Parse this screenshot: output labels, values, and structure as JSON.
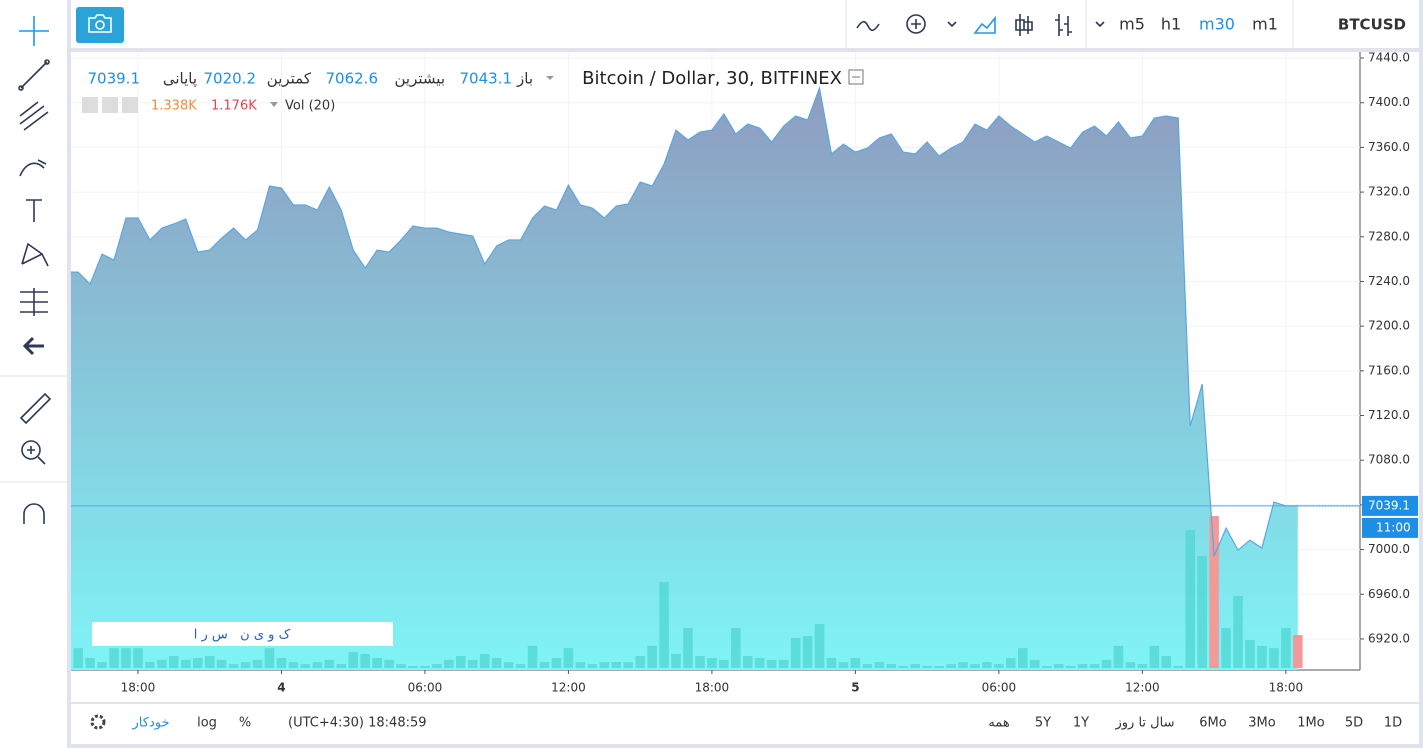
{
  "toolbar": {
    "symbol": "BTCUSD",
    "intervals": [
      "m5",
      "h1",
      "m30",
      "m1"
    ],
    "active_interval": 2
  },
  "legend": {
    "title": "Bitcoin / Dollar, 30, BITFINEX",
    "open_label": "باز",
    "open": 7043.1,
    "high_label": "بیشترین",
    "high": 7062.6,
    "low_label": "کمترین",
    "low": 7020.2,
    "close_label": "پایانی",
    "close": 7039.1,
    "volume_title": "Vol (20)",
    "volume_ma": "1.338K",
    "volume_last": "1.176K"
  },
  "watermark": "ک و ی ن   س ر ا",
  "chart": {
    "type": "area",
    "line_color": "#5aa7e2",
    "area_top_color": "#8e9cc0",
    "area_bottom_color": "#7ff4f6",
    "values": [
      7248.4,
      7248.4,
      7237.7,
      7264.5,
      7259.1,
      7296.8,
      7296.8,
      7277.1,
      7287.8,
      7291.4,
      7295.9,
      7266.3,
      7268.1,
      7278.8,
      7287.8,
      7277.1,
      7286.0,
      7325.4,
      7323.6,
      7308.4,
      7308.4,
      7303.9,
      7324.5,
      7303.9,
      7268.1,
      7252.0,
      7268.1,
      7266.3,
      7277.1,
      7289.6,
      7287.8,
      7287.8,
      7284.2,
      7282.4,
      7280.6,
      7255.6,
      7271.7,
      7277.1,
      7277.1,
      7296.8,
      7307.5,
      7303.9,
      7326.3,
      7308.4,
      7305.7,
      7296.8,
      7307.5,
      7309.3,
      7329.0,
      7325.4,
      7345.1,
      7375.5,
      7366.6,
      7373.7,
      7375.5,
      7389.9,
      7372.0,
      7380.9,
      7377.3,
      7364.8,
      7379.1,
      7388.1,
      7384.5,
      7413.1,
      7354.1,
      7363.0,
      7355.8,
      7359.4,
      7368.4,
      7372.0,
      7355.8,
      7354.1,
      7364.8,
      7352.3,
      7359.4,
      7364.8,
      7380.9,
      7375.5,
      7388.1,
      7379.1,
      7372.0,
      7364.8,
      7370.2,
      7364.8,
      7359.4,
      7373.7,
      7379.1,
      7370.2,
      7382.7,
      7368.4,
      7370.2,
      7386.3,
      7388.1,
      7386.3,
      7110.5,
      7148.1,
      6994.1,
      7019.2,
      6999.5,
      7008.5,
      7001.3,
      7042.5,
      7039.1,
      7039.1
    ],
    "volume": [
      0.29,
      0.71,
      0.36,
      0.21,
      0.71,
      0.71,
      0.71,
      0.21,
      0.29,
      0.43,
      0.29,
      0.36,
      0.43,
      0.29,
      0.14,
      0.21,
      0.29,
      0.71,
      0.36,
      0.21,
      0.14,
      0.21,
      0.29,
      0.14,
      0.57,
      0.5,
      0.36,
      0.29,
      0.14,
      0.07,
      0.07,
      0.14,
      0.29,
      0.43,
      0.29,
      0.5,
      0.36,
      0.21,
      0.14,
      0.79,
      0.21,
      0.36,
      0.71,
      0.21,
      0.14,
      0.21,
      0.21,
      0.21,
      0.43,
      0.79,
      3.07,
      0.5,
      1.43,
      0.43,
      0.36,
      0.29,
      1.43,
      0.43,
      0.36,
      0.29,
      0.29,
      1.07,
      1.14,
      1.57,
      0.36,
      0.21,
      0.36,
      0.14,
      0.21,
      0.14,
      0.07,
      0.14,
      0.07,
      0.07,
      0.14,
      0.21,
      0.14,
      0.21,
      0.14,
      0.36,
      0.71,
      0.29,
      0.07,
      0.14,
      0.07,
      0.14,
      0.14,
      0.29,
      0.79,
      0.21,
      0.14,
      0.79,
      0.43,
      0.07,
      4.93,
      4.0,
      5.43,
      1.43,
      2.57,
      1.0,
      0.79,
      0.71,
      1.43,
      1.176
    ],
    "volume_color": "#4fd6d2",
    "volume_down_color": "#f29a9a",
    "volume_down": [
      96,
      103
    ],
    "xlim": [
      0.4,
      108.2
    ],
    "xticks": [
      {
        "value": 6,
        "label": "18:00"
      },
      {
        "value": 18,
        "label": "4"
      },
      {
        "value": 30,
        "label": "06:00"
      },
      {
        "value": 42,
        "label": "12:00"
      },
      {
        "value": 54,
        "label": "18:00"
      },
      {
        "value": 66,
        "label": "5"
      },
      {
        "value": 78,
        "label": "06:00"
      },
      {
        "value": 90,
        "label": "12:00"
      },
      {
        "value": 102,
        "label": "18:00"
      }
    ],
    "ylim": [
      6892.2,
      7445.4
    ],
    "yticks": [
      {
        "value": 6920,
        "label": "6920.0"
      },
      {
        "value": 6960,
        "label": "6960.0"
      },
      {
        "value": 7000,
        "label": "7000.0"
      },
      {
        "value": 7040,
        "label": "7040.0"
      },
      {
        "value": 7080,
        "label": "7080.0"
      },
      {
        "value": 7120,
        "label": "7120.0"
      },
      {
        "value": 7160,
        "label": "7160.0"
      },
      {
        "value": 7200,
        "label": "7200.0"
      },
      {
        "value": 7240,
        "label": "7240.0"
      },
      {
        "value": 7280,
        "label": "7280.0"
      },
      {
        "value": 7320,
        "label": "7320.0"
      },
      {
        "value": 7360,
        "label": "7360.0"
      },
      {
        "value": 7400,
        "label": "7400.0"
      },
      {
        "value": 7440,
        "label": "7440.0"
      }
    ],
    "grid": true,
    "last_price_color": "#1e8fe6",
    "last_bar_time": "11:00"
  },
  "bottom_bar": {
    "auto": "خودکار",
    "log": "log",
    "percent": "%",
    "clock": "(UTC+4:30) 18:48:59",
    "ranges": [
      "همه",
      "5Y",
      "1Y",
      "سال تا روز",
      "6Mo",
      "3Mo",
      "1Mo",
      "5D",
      "1D"
    ]
  }
}
